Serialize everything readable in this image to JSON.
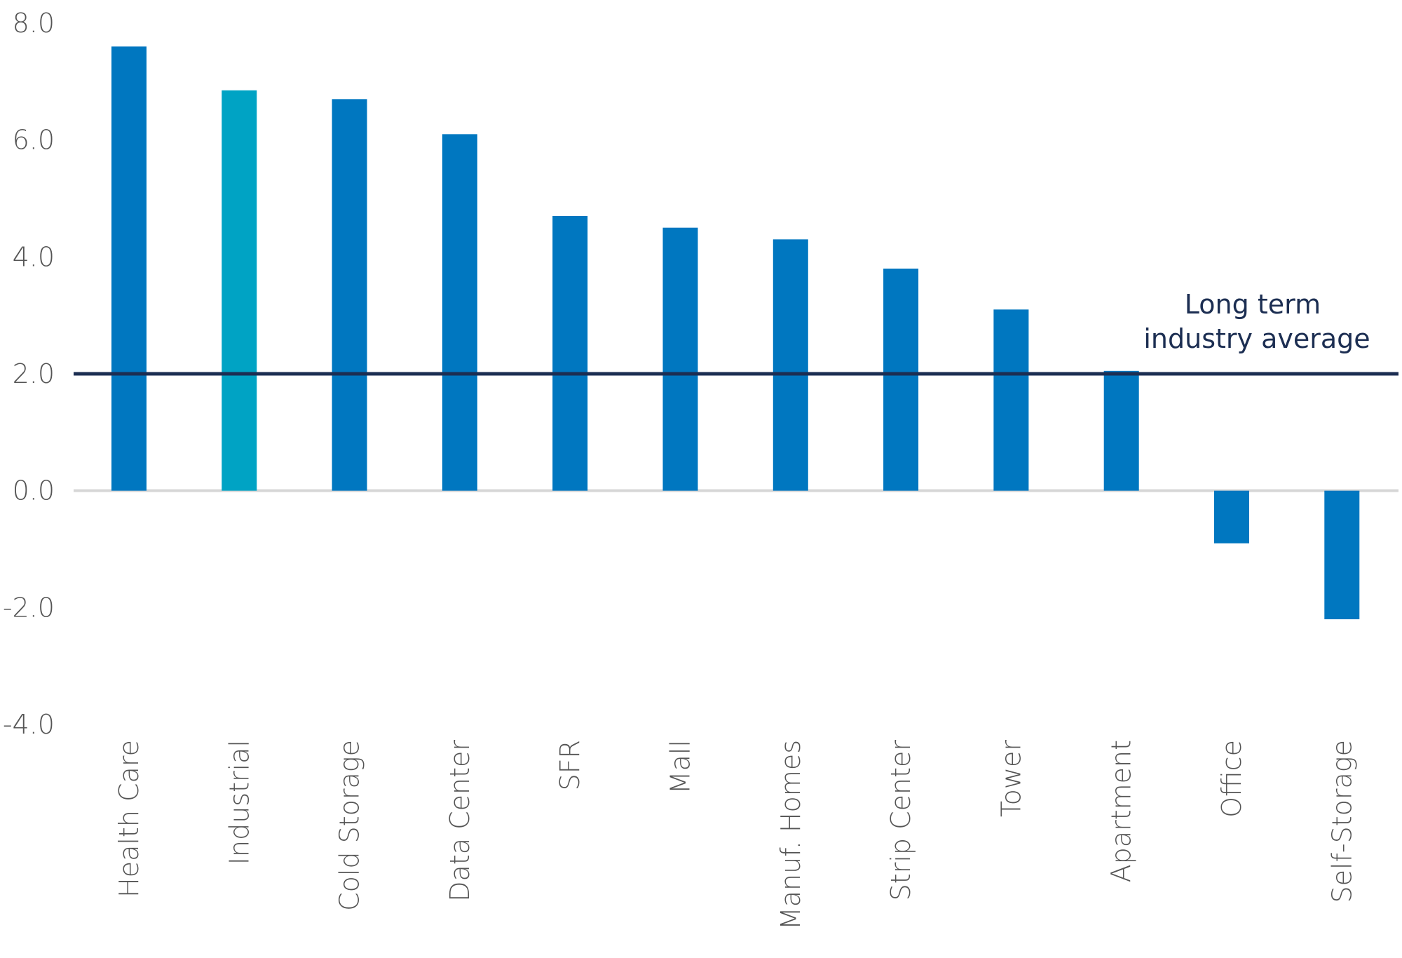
{
  "chart_data": {
    "type": "bar",
    "categories": [
      "Health Care",
      "Industrial",
      "Cold Storage",
      "Data Center",
      "SFR",
      "Mall",
      "Manuf. Homes",
      "Strip Center",
      "Tower",
      "Apartment",
      "Office",
      "Self-Storage"
    ],
    "values": [
      7.6,
      6.85,
      6.7,
      6.1,
      4.7,
      4.5,
      4.3,
      3.8,
      3.1,
      2.05,
      -0.9,
      -2.2
    ],
    "ylim": [
      -4.0,
      8.0
    ],
    "yticks": [
      "8.0",
      "6.0",
      "4.0",
      "2.0",
      "0.0",
      "-2.0",
      "-4.0"
    ],
    "ytick_values": [
      8,
      6,
      4,
      2,
      0,
      -2,
      -4
    ],
    "reference_line": {
      "value": 2.0,
      "label_lines": [
        "Long term",
        "industry average"
      ],
      "color": "#1c2e52"
    },
    "colors": {
      "default_bar": "#0077c0",
      "highlight_bar": "#00a3c4",
      "zero_line": "#d6d6d6"
    },
    "highlight_category": "Industrial",
    "grid": false
  }
}
